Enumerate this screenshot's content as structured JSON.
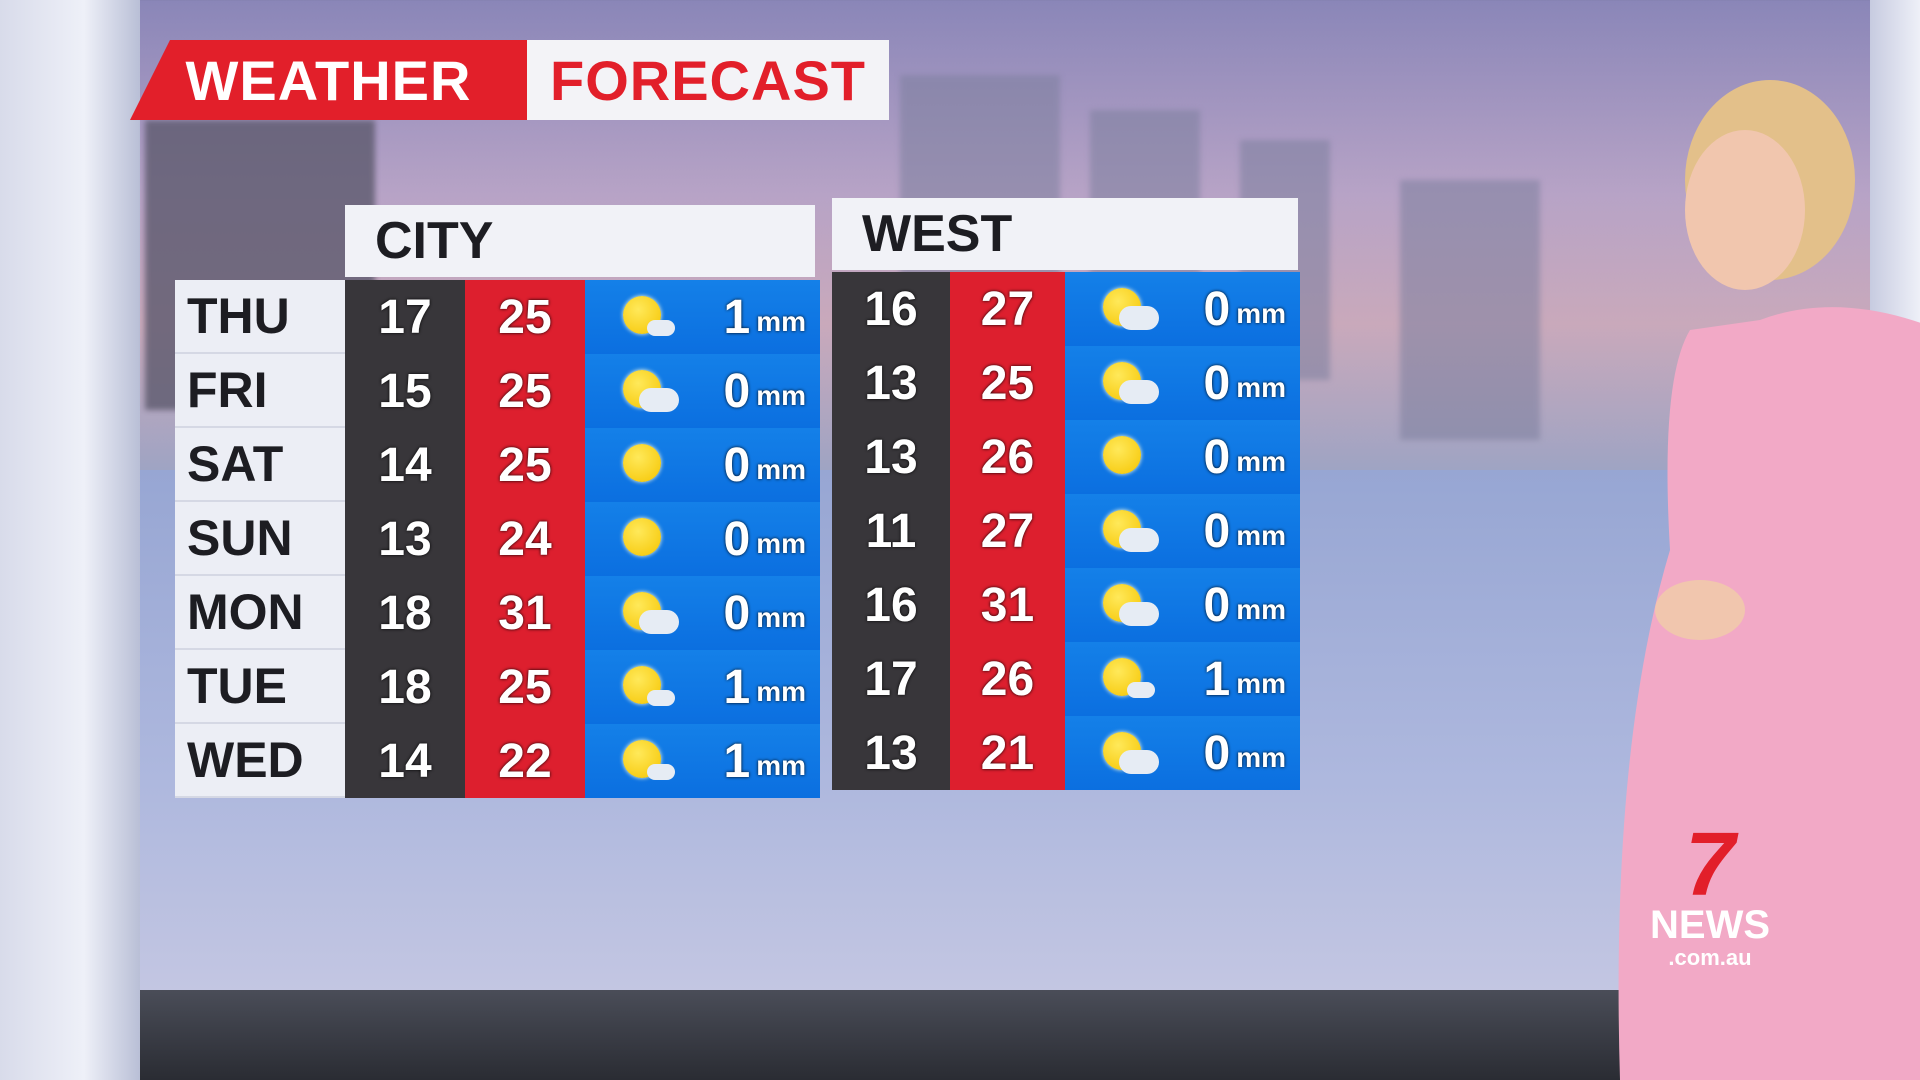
{
  "title": {
    "part1": "WEATHER",
    "part2": "FORECAST"
  },
  "colors": {
    "brand_red": "#e21f2a",
    "low_bg": "#38363a",
    "high_bg": "#dd1f2e",
    "rain_bg": "#1480e8"
  },
  "days": [
    "THU",
    "FRI",
    "SAT",
    "SUN",
    "MON",
    "TUE",
    "WED"
  ],
  "rain_unit": "mm",
  "regions": [
    {
      "name": "CITY",
      "rows": [
        {
          "low": "17",
          "high": "25",
          "icon": "mostly-sunny",
          "rain": "1"
        },
        {
          "low": "15",
          "high": "25",
          "icon": "partly-cloudy",
          "rain": "0"
        },
        {
          "low": "14",
          "high": "25",
          "icon": "sunny",
          "rain": "0"
        },
        {
          "low": "13",
          "high": "24",
          "icon": "sunny",
          "rain": "0"
        },
        {
          "low": "18",
          "high": "31",
          "icon": "partly-cloudy",
          "rain": "0"
        },
        {
          "low": "18",
          "high": "25",
          "icon": "mostly-sunny",
          "rain": "1"
        },
        {
          "low": "14",
          "high": "22",
          "icon": "mostly-sunny",
          "rain": "1"
        }
      ]
    },
    {
      "name": "WEST",
      "rows": [
        {
          "low": "16",
          "high": "27",
          "icon": "partly-cloudy",
          "rain": "0"
        },
        {
          "low": "13",
          "high": "25",
          "icon": "partly-cloudy",
          "rain": "0"
        },
        {
          "low": "13",
          "high": "26",
          "icon": "sunny",
          "rain": "0"
        },
        {
          "low": "11",
          "high": "27",
          "icon": "partly-cloudy",
          "rain": "0"
        },
        {
          "low": "16",
          "high": "31",
          "icon": "partly-cloudy",
          "rain": "0"
        },
        {
          "low": "17",
          "high": "26",
          "icon": "mostly-sunny",
          "rain": "1"
        },
        {
          "low": "13",
          "high": "21",
          "icon": "partly-cloudy",
          "rain": "0"
        }
      ]
    }
  ],
  "logo": {
    "number": "7",
    "text": "NEWS",
    "domain": ".com.au"
  }
}
